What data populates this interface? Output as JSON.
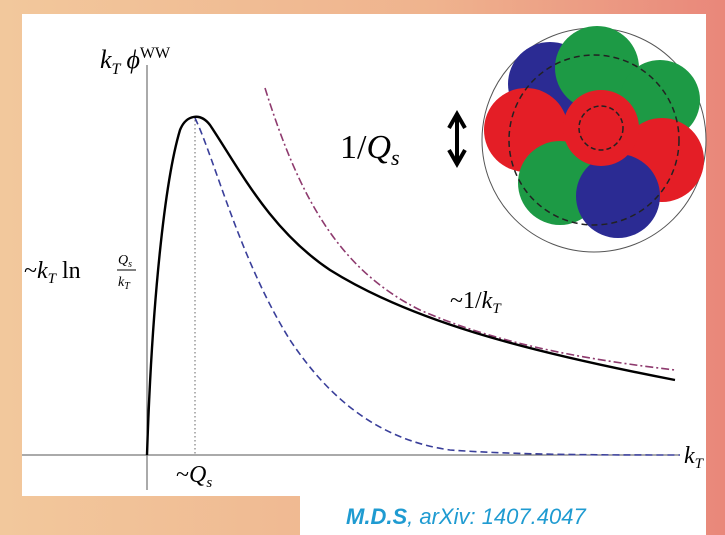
{
  "figure": {
    "y_axis_label": [
      "k",
      "T",
      "ϕ",
      "WW"
    ],
    "scale_label": [
      "1/",
      "Q",
      "s"
    ],
    "low_kt_label": [
      "~",
      "k",
      "T",
      "ln",
      "Q",
      "s",
      "k",
      "T"
    ],
    "tail_label": [
      "~1/",
      "k",
      "T"
    ],
    "x_axis_label": [
      "k",
      "T"
    ],
    "peak_label": [
      "~",
      "Q",
      "s"
    ]
  },
  "citation": {
    "author": "M.D.S",
    "source": ", arXiv: 1407.4047"
  }
}
